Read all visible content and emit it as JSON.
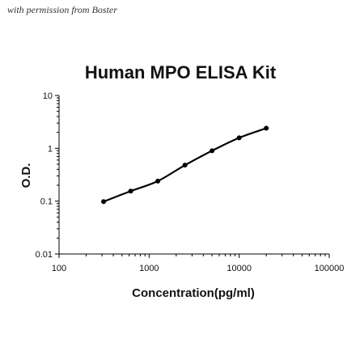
{
  "watermark": "with permission from Boster",
  "chart_data": {
    "type": "scatter",
    "title": "Human MPO ELISA Kit",
    "xlabel": "Concentration(pg/ml)",
    "ylabel": "O.D.",
    "x_scale": "log",
    "y_scale": "log",
    "xlim": [
      100,
      100000
    ],
    "ylim": [
      0.01,
      10
    ],
    "x_ticks": [
      100,
      1000,
      10000,
      100000
    ],
    "x_tick_labels": [
      "100",
      "1000",
      "10000",
      "100000"
    ],
    "y_ticks": [
      0.01,
      0.1,
      1,
      10
    ],
    "y_tick_labels": [
      "0.01",
      "0.1",
      "1",
      "10"
    ],
    "grid": false,
    "legend": "none",
    "series": [
      {
        "x": [
          312.5,
          625,
          1250,
          2500,
          5000,
          10000,
          20000
        ],
        "y": [
          0.098,
          0.155,
          0.24,
          0.48,
          0.9,
          1.58,
          2.4
        ],
        "color": "#000000",
        "markers": true,
        "line": "smooth"
      }
    ]
  }
}
